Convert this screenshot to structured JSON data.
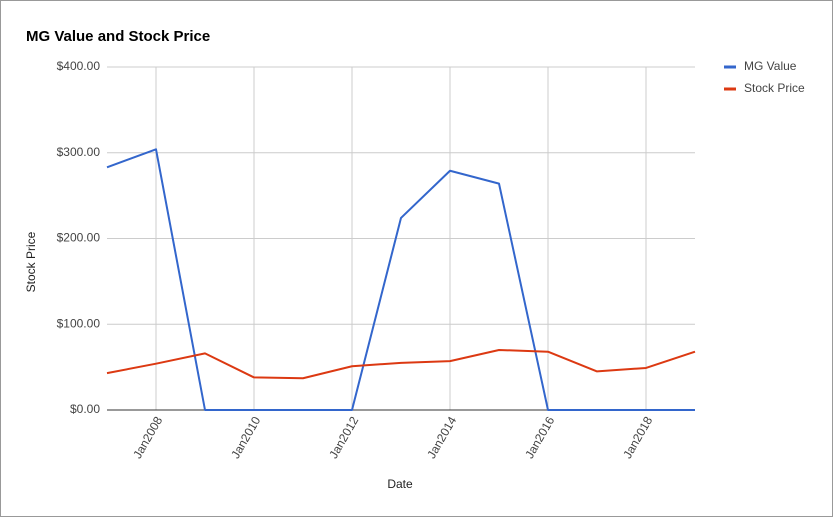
{
  "chart_data": {
    "type": "line",
    "title": "MG Value and Stock Price",
    "x_label": "Date",
    "y_label": "Stock Price",
    "x": [
      "2007-01",
      "2008-01",
      "2009-01",
      "2010-01",
      "2011-01",
      "2012-01",
      "2013-01",
      "2014-01",
      "2015-01",
      "2016-01",
      "2017-01",
      "2018-01",
      "2019-01"
    ],
    "series": [
      {
        "name": "MG Value",
        "color": "#3366cc",
        "values": [
          283,
          304,
          0,
          0,
          0,
          0,
          224,
          279,
          264,
          0,
          0,
          0,
          0
        ]
      },
      {
        "name": "Stock Price",
        "color": "#dc3912",
        "values": [
          43,
          54,
          66,
          38,
          37,
          51,
          55,
          57,
          70,
          68,
          45,
          49,
          68
        ]
      }
    ],
    "xlim": [
      "2007-01",
      "2019-01"
    ],
    "xticks": [
      {
        "value": "2008-01",
        "label": "Jan2008"
      },
      {
        "value": "2010-01",
        "label": "Jan2010"
      },
      {
        "value": "2012-01",
        "label": "Jan2012"
      },
      {
        "value": "2014-01",
        "label": "Jan2014"
      },
      {
        "value": "2016-01",
        "label": "Jan2016"
      },
      {
        "value": "2018-01",
        "label": "Jan2018"
      }
    ],
    "ylim": [
      0,
      400
    ],
    "yticks": [
      {
        "value": 0,
        "label": "$0.00"
      },
      {
        "value": 100,
        "label": "$100.00"
      },
      {
        "value": 200,
        "label": "$200.00"
      },
      {
        "value": 300,
        "label": "$300.00"
      },
      {
        "value": 400,
        "label": "$400.00"
      }
    ],
    "grid": true,
    "legend": "right"
  }
}
